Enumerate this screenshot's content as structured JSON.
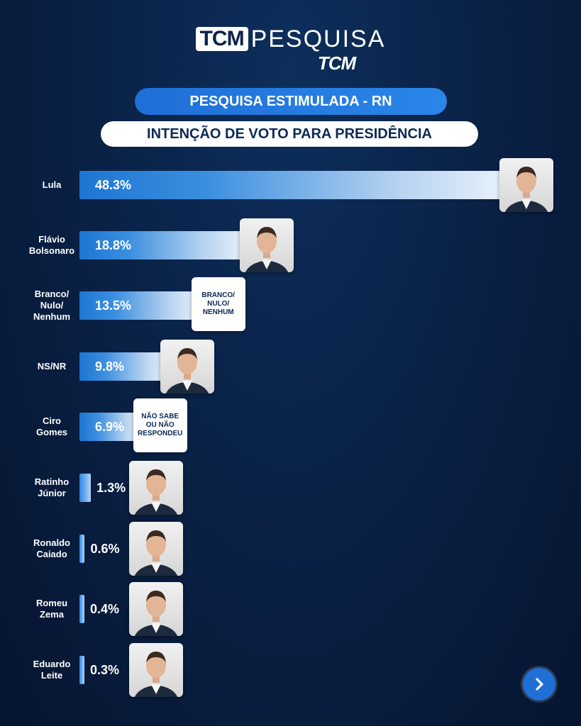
{
  "header": {
    "brand_box": "TCM",
    "brand_text": "PESQUISA",
    "brand_sub": "TCM",
    "title": "PESQUISA ESTIMULADA - RN",
    "subtitle": "INTENÇÃO DE VOTO PARA PRESIDÊNCIA"
  },
  "chart_data": {
    "type": "bar",
    "orientation": "horizontal",
    "title": "INTENÇÃO DE VOTO PARA PRESIDÊNCIA",
    "categories": [
      "Lula",
      "Flávio Bolsonaro",
      "Branco/ Nulo/ Nenhum",
      "NS/NR",
      "Ciro Gomes",
      "Ratinho Júnior",
      "Ronaldo Caiado",
      "Romeu Zema",
      "Eduardo Leite"
    ],
    "values": [
      48.3,
      18.8,
      13.5,
      9.8,
      6.9,
      1.3,
      0.6,
      0.4,
      0.3
    ],
    "value_labels": [
      "48.3%",
      "18.8%",
      "13.5%",
      "9.8%",
      "6.9%",
      "1.3%",
      "0.6%",
      "0.4%",
      "0.3%"
    ],
    "badges": [
      "",
      "",
      "BRANCO/ NULO/ NENHUM",
      "",
      "NÃO SABE OU NÃO RESPONDEU",
      "",
      "",
      "",
      ""
    ],
    "colors": {
      "bar_start": "#1d76d2",
      "bar_end": "#e8f1fb",
      "background": "#0a2247"
    }
  },
  "nav": {
    "next_icon": "chevron-right-icon"
  }
}
